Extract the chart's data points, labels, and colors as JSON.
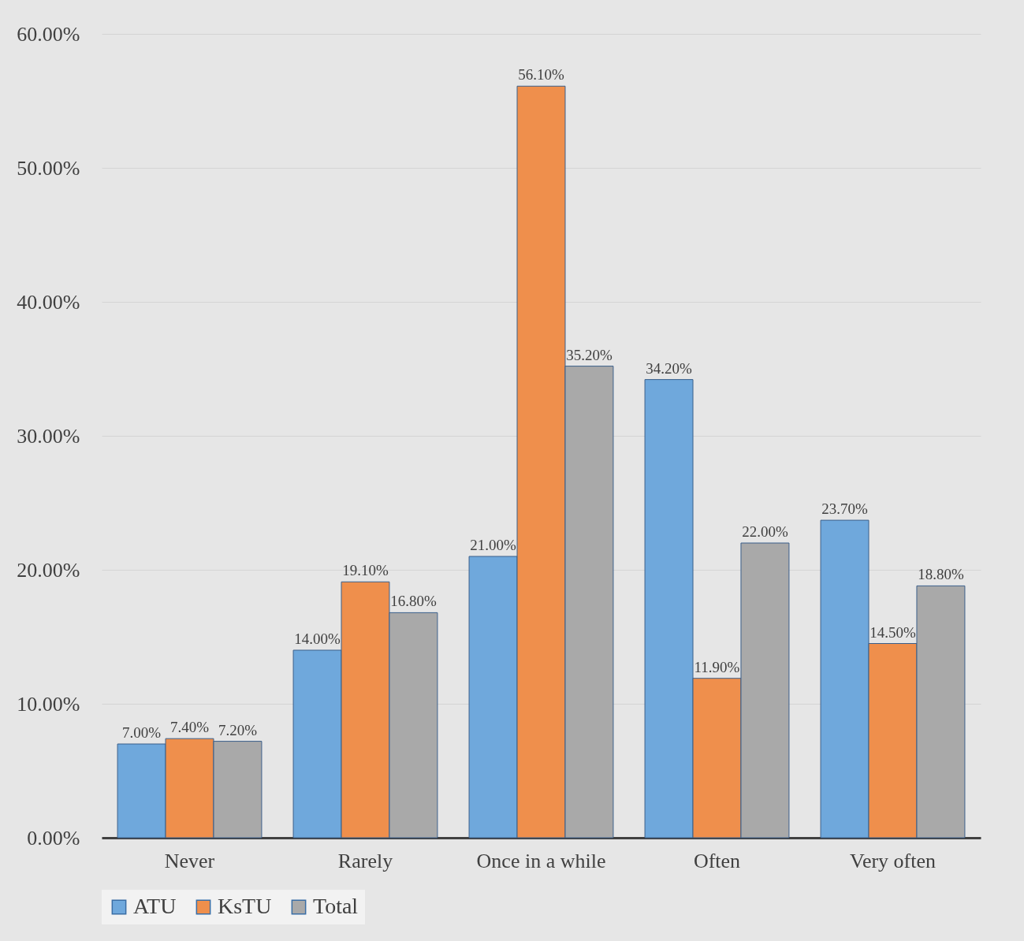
{
  "chart_data": {
    "type": "bar",
    "categories": [
      "Never",
      "Rarely",
      "Once in a while",
      "Often",
      "Very often"
    ],
    "series": [
      {
        "name": "ATU",
        "color": "#6fa8dc",
        "values": [
          7.0,
          14.0,
          21.0,
          34.2,
          23.7
        ],
        "value_labels": [
          "7.00%",
          "14.00%",
          "21.00%",
          "34.20%",
          "23.70%"
        ]
      },
      {
        "name": "KsTU",
        "color": "#ef8f4c",
        "values": [
          7.4,
          19.1,
          56.1,
          11.9,
          14.5
        ],
        "value_labels": [
          "7.40%",
          "19.10%",
          "56.10%",
          "11.90%",
          "14.50%"
        ]
      },
      {
        "name": "Total",
        "color": "#a9a9a9",
        "values": [
          7.2,
          16.8,
          35.2,
          22.0,
          18.8
        ],
        "value_labels": [
          "7.20%",
          "16.80%",
          "35.20%",
          "22.00%",
          "18.80%"
        ]
      }
    ],
    "ylim": [
      0,
      60
    ],
    "yticks": [
      {
        "value": 0,
        "label": "0.00%"
      },
      {
        "value": 10,
        "label": "10.00%"
      },
      {
        "value": 20,
        "label": "20.00%"
      },
      {
        "value": 30,
        "label": "30.00%"
      },
      {
        "value": 40,
        "label": "40.00%"
      },
      {
        "value": 50,
        "label": "50.00%"
      },
      {
        "value": 60,
        "label": "60.00%"
      }
    ],
    "grid": "y",
    "legend": "bottom"
  }
}
